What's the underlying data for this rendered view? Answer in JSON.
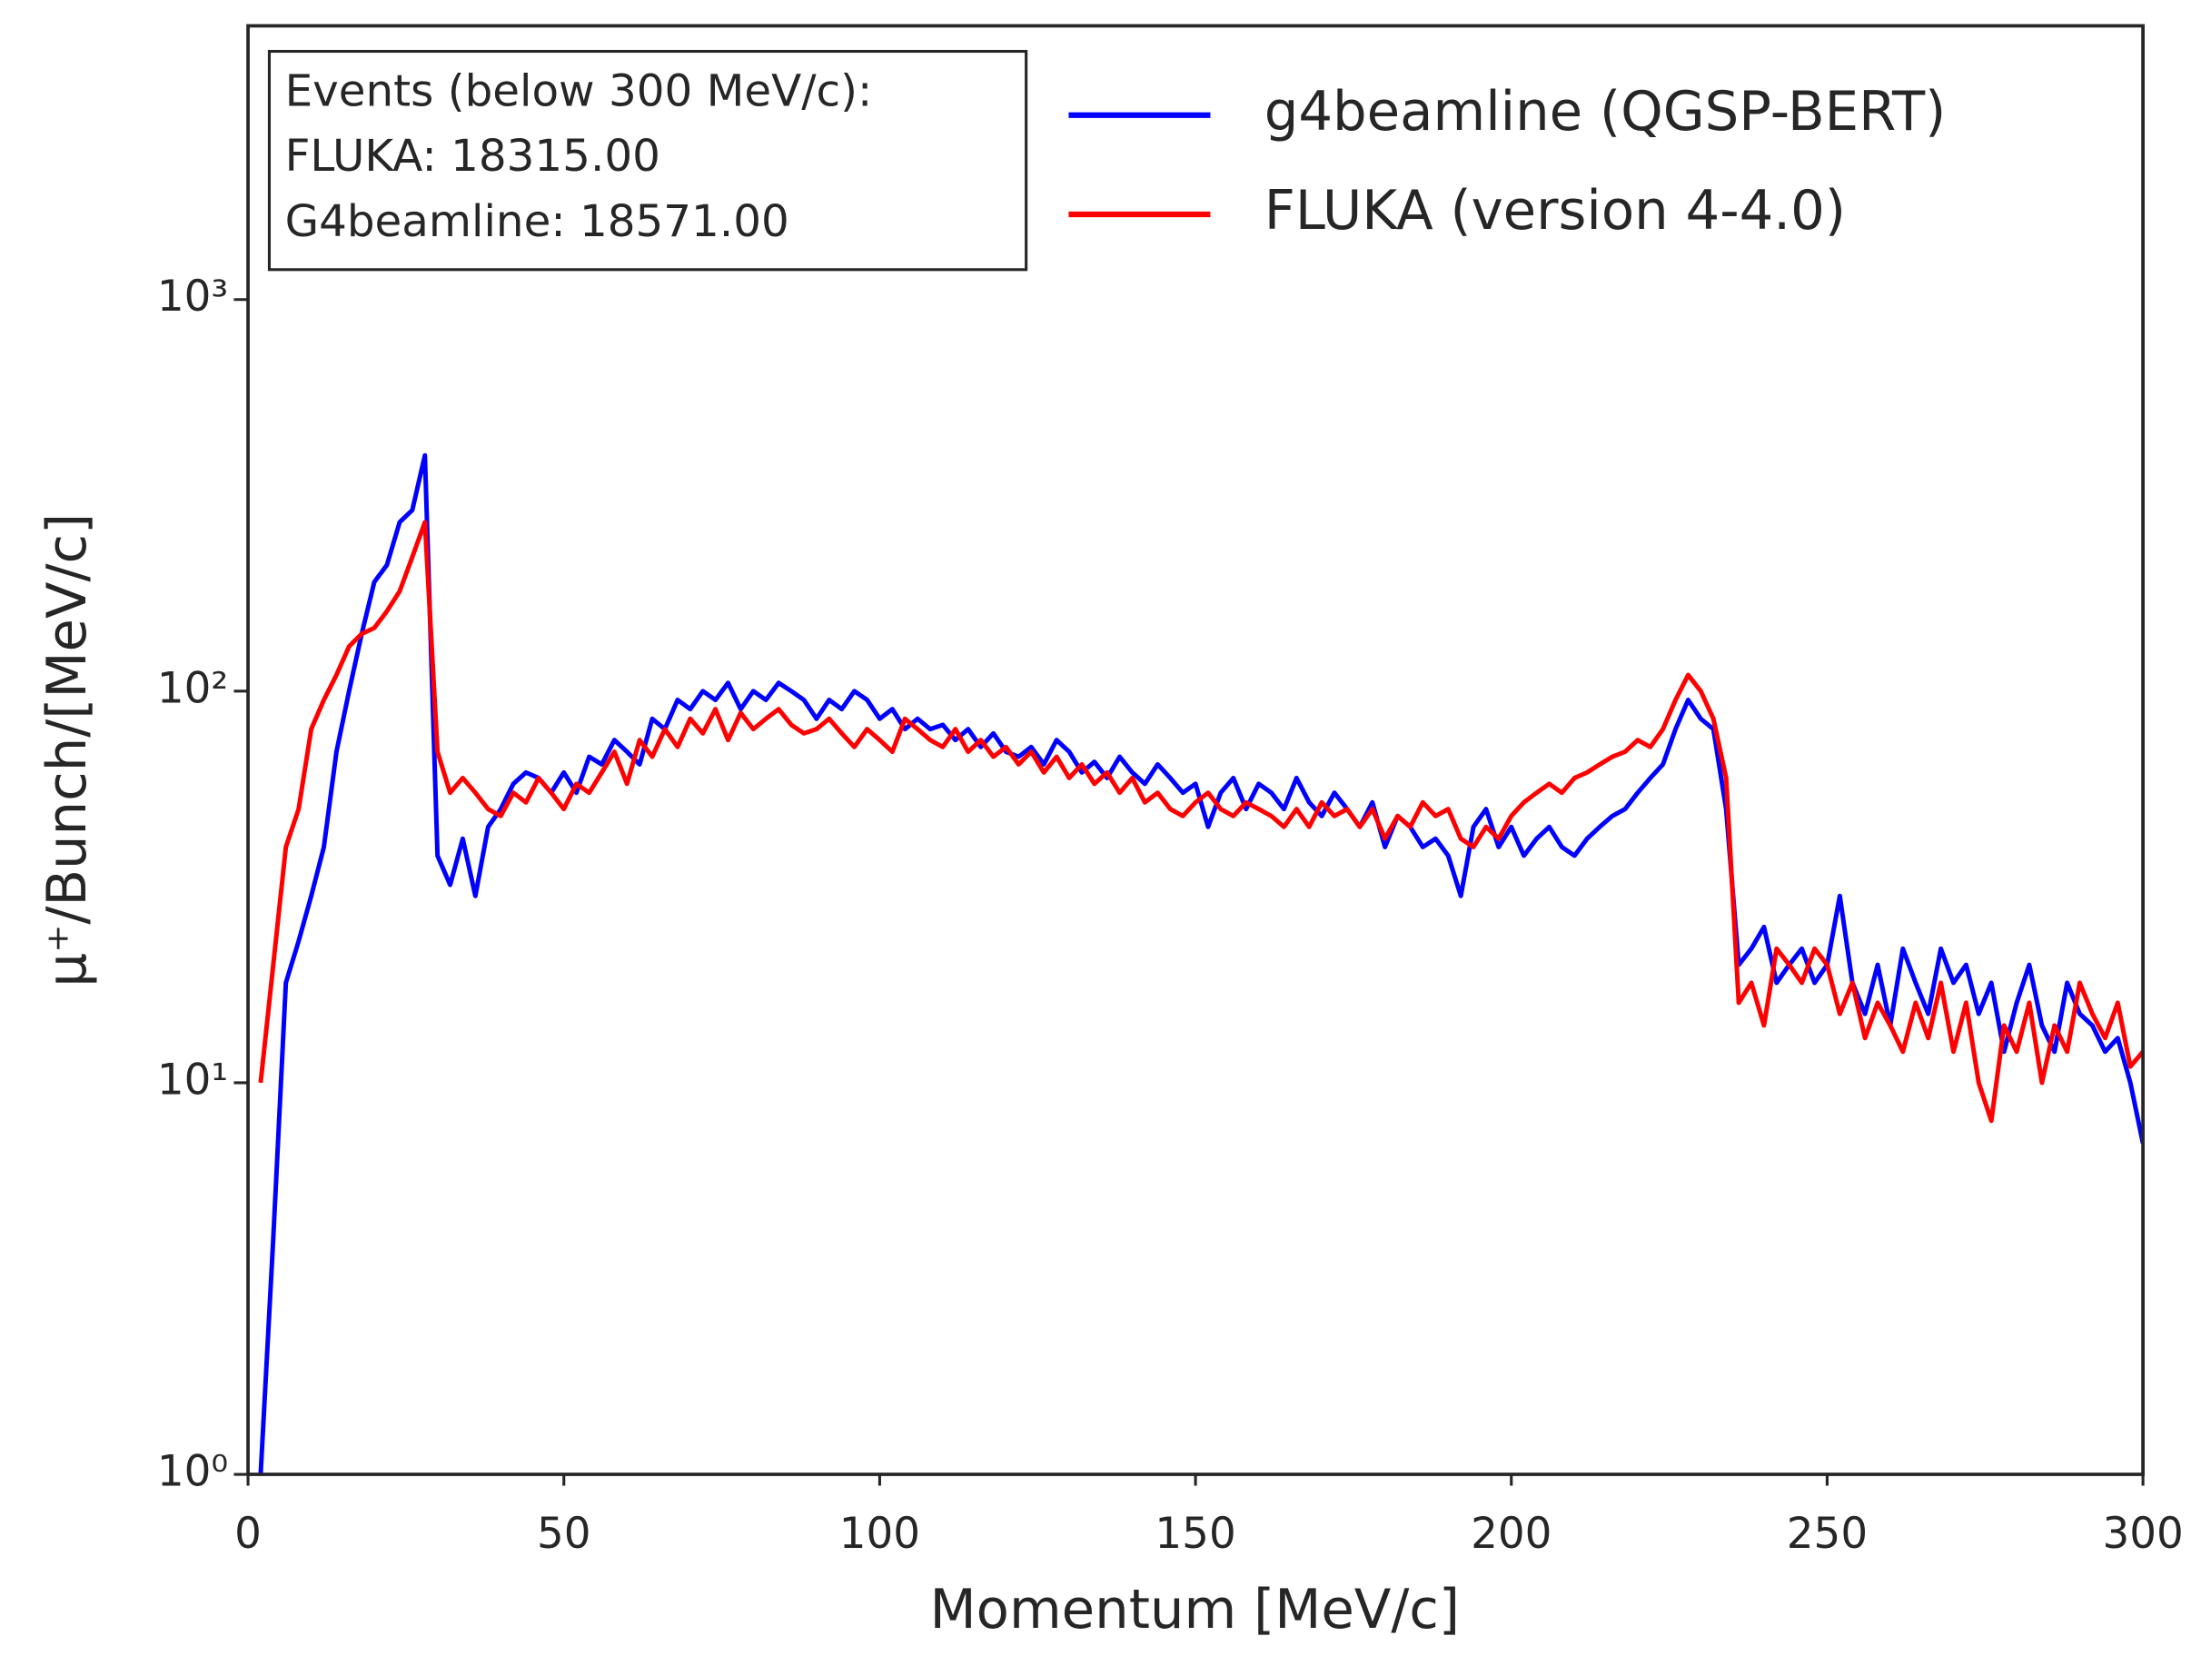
{
  "chart_data": {
    "type": "line",
    "x_label": "Momentum [MeV/c]",
    "y_label": "μ⁺/Bunch/[MeV/c]",
    "annotation": [
      "Events (below 300 MeV/c):",
      "FLUKA: 18315.00",
      "G4beamline: 18571.00"
    ],
    "yscale": "log",
    "xlim": [
      0,
      300
    ],
    "ylim": [
      1,
      5000
    ],
    "xticks": [
      0,
      50,
      100,
      150,
      200,
      250,
      300
    ],
    "yticks": [
      {
        "value": 1,
        "label": "10⁰"
      },
      {
        "value": 10,
        "label": "10¹"
      },
      {
        "value": 100,
        "label": "10²"
      },
      {
        "value": 1000,
        "label": "10³"
      }
    ],
    "x": [
      2,
      4,
      6,
      8,
      10,
      12,
      14,
      16,
      18,
      20,
      22,
      24,
      26,
      28,
      30,
      32,
      34,
      36,
      38,
      40,
      42,
      44,
      46,
      48,
      50,
      52,
      54,
      56,
      58,
      60,
      62,
      64,
      66,
      68,
      70,
      72,
      74,
      76,
      78,
      80,
      82,
      84,
      86,
      88,
      90,
      92,
      94,
      96,
      98,
      100,
      102,
      104,
      106,
      108,
      110,
      112,
      114,
      116,
      118,
      120,
      122,
      124,
      126,
      128,
      130,
      132,
      134,
      136,
      138,
      140,
      142,
      144,
      146,
      148,
      150,
      152,
      154,
      156,
      158,
      160,
      162,
      164,
      166,
      168,
      170,
      172,
      174,
      176,
      178,
      180,
      182,
      184,
      186,
      188,
      190,
      192,
      194,
      196,
      198,
      200,
      202,
      204,
      206,
      208,
      210,
      212,
      214,
      216,
      218,
      220,
      222,
      224,
      226,
      228,
      230,
      232,
      234,
      236,
      238,
      240,
      242,
      244,
      246,
      248,
      250,
      252,
      254,
      256,
      258,
      260,
      262,
      264,
      266,
      268,
      270,
      272,
      274,
      276,
      278,
      280,
      282,
      284,
      286,
      288,
      290,
      292,
      294,
      296,
      298,
      300
    ],
    "series": [
      {
        "name": "g4beamline (QGSP-BERT)",
        "color": "#0000ff",
        "values": [
          1,
          4,
          18,
          23,
          30,
          40,
          70,
          100,
          140,
          190,
          210,
          270,
          290,
          400,
          38,
          32,
          42,
          30,
          45,
          50,
          58,
          62,
          60,
          55,
          62,
          55,
          68,
          65,
          75,
          70,
          65,
          85,
          80,
          95,
          90,
          100,
          95,
          105,
          90,
          100,
          95,
          105,
          100,
          95,
          85,
          95,
          90,
          100,
          95,
          85,
          90,
          80,
          85,
          80,
          82,
          75,
          80,
          72,
          78,
          70,
          68,
          72,
          65,
          75,
          70,
          62,
          66,
          60,
          68,
          62,
          58,
          65,
          60,
          55,
          58,
          45,
          55,
          60,
          50,
          58,
          55,
          50,
          60,
          52,
          48,
          55,
          50,
          45,
          52,
          40,
          48,
          45,
          40,
          42,
          38,
          30,
          45,
          50,
          40,
          45,
          38,
          42,
          45,
          40,
          38,
          42,
          45,
          48,
          50,
          55,
          60,
          65,
          80,
          95,
          85,
          80,
          50,
          20,
          22,
          25,
          18,
          20,
          22,
          18,
          20,
          30,
          18,
          15,
          20,
          14,
          22,
          18,
          15,
          22,
          18,
          20,
          15,
          18,
          12,
          16,
          20,
          14,
          12,
          18,
          15,
          14,
          12,
          13,
          10,
          7
        ]
      },
      {
        "name": "FLUKA (version 4-4.0)",
        "color": "#ff0000",
        "values": [
          10,
          20,
          40,
          50,
          80,
          95,
          110,
          130,
          140,
          145,
          160,
          180,
          220,
          270,
          70,
          55,
          60,
          55,
          50,
          48,
          55,
          52,
          60,
          55,
          50,
          58,
          55,
          62,
          70,
          58,
          75,
          68,
          80,
          72,
          85,
          78,
          90,
          75,
          88,
          80,
          85,
          90,
          82,
          78,
          80,
          85,
          78,
          72,
          80,
          75,
          70,
          85,
          80,
          75,
          72,
          80,
          70,
          75,
          68,
          72,
          65,
          70,
          62,
          68,
          60,
          65,
          58,
          62,
          55,
          60,
          52,
          55,
          50,
          48,
          52,
          55,
          50,
          48,
          52,
          50,
          48,
          45,
          50,
          45,
          52,
          48,
          50,
          45,
          50,
          42,
          48,
          45,
          52,
          48,
          50,
          42,
          40,
          45,
          42,
          48,
          52,
          55,
          58,
          55,
          60,
          62,
          65,
          68,
          70,
          75,
          72,
          80,
          95,
          110,
          100,
          85,
          60,
          16,
          18,
          14,
          22,
          20,
          18,
          22,
          20,
          15,
          18,
          13,
          16,
          14,
          12,
          16,
          13,
          18,
          12,
          16,
          10,
          8,
          14,
          12,
          16,
          10,
          14,
          12,
          18,
          15,
          13,
          16,
          11,
          12
        ]
      }
    ]
  }
}
